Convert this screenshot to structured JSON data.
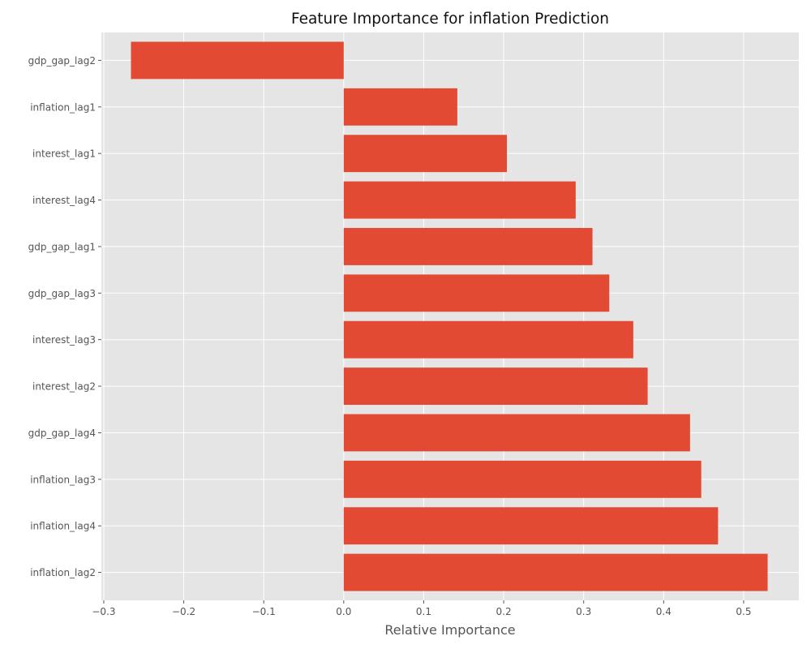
{
  "chart_data": {
    "type": "bar",
    "orientation": "horizontal",
    "title": "Feature Importance for inflation Prediction",
    "xlabel": "Relative Importance",
    "ylabel": "",
    "categories": [
      "gdp_gap_lag2",
      "inflation_lag1",
      "interest_lag1",
      "interest_lag4",
      "gdp_gap_lag1",
      "gdp_gap_lag3",
      "interest_lag3",
      "interest_lag2",
      "gdp_gap_lag4",
      "inflation_lag3",
      "inflation_lag4",
      "inflation_lag2"
    ],
    "values": [
      -0.266,
      0.142,
      0.204,
      0.29,
      0.311,
      0.332,
      0.362,
      0.38,
      0.433,
      0.447,
      0.468,
      0.53
    ],
    "xlim": [
      -0.303,
      0.569
    ],
    "xticks": [
      -0.3,
      -0.2,
      -0.1,
      0.0,
      0.1,
      0.2,
      0.3,
      0.4,
      0.5
    ],
    "xtick_labels": [
      "−0.3",
      "−0.2",
      "−0.1",
      "0.0",
      "0.1",
      "0.2",
      "0.3",
      "0.4",
      "0.5"
    ],
    "grid": true,
    "legend": "none",
    "colors": {
      "bar": "#E24A33",
      "plot_background": "#E5E5E5",
      "grid": "#FFFFFF",
      "figure_background": "#FFFFFF"
    }
  }
}
